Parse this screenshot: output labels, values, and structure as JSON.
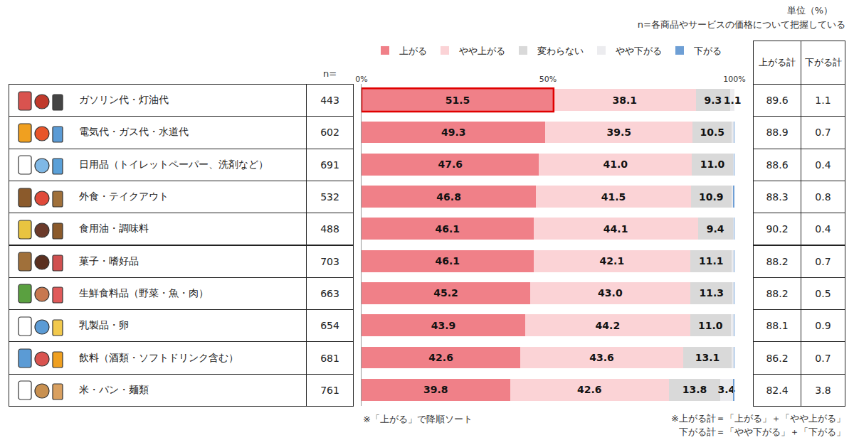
{
  "chart_data": {
    "type": "bar",
    "orientation": "horizontal",
    "stacked": true,
    "data_labels": true,
    "grid": false,
    "legend": "top",
    "unit_note": "単位（%）",
    "n_note": "n=各商品やサービスの価格について把握している",
    "n_label": "n=",
    "categories": [
      "ガソリン代・灯油代",
      "電気代・ガス代・水道代",
      "日用品（トイレットペーパー、洗剤など）",
      "外食・テイクアウト",
      "食用油・調味料",
      "菓子・嗜好品",
      "生鮮食料品（野菜・魚・肉）",
      "乳製品・卵",
      "飲料（酒類・ソフトドリンク含む）",
      "米・パン・麺類"
    ],
    "n": [
      443,
      602,
      691,
      532,
      488,
      703,
      663,
      654,
      681,
      761
    ],
    "xlim": [
      0,
      100
    ],
    "xticks": [
      {
        "value": 0,
        "label": "0%"
      },
      {
        "value": 50,
        "label": "50%"
      },
      {
        "value": 100,
        "label": "100%"
      }
    ],
    "series": [
      {
        "name": "上がる",
        "color": "#F08088",
        "values": [
          51.5,
          49.3,
          47.6,
          46.8,
          46.1,
          46.1,
          45.2,
          43.9,
          42.6,
          39.8
        ],
        "value_labels": [
          "51.5",
          "49.3",
          "47.6",
          "46.8",
          "46.1",
          "46.1",
          "45.2",
          "43.9",
          "42.6",
          "39.8"
        ]
      },
      {
        "name": "やや上がる",
        "color": "#FBD3D6",
        "values": [
          38.1,
          39.5,
          41.0,
          41.5,
          44.1,
          42.1,
          43.0,
          44.2,
          43.6,
          42.6
        ],
        "value_labels": [
          "38.1",
          "39.5",
          "41.0",
          "41.5",
          "44.1",
          "42.1",
          "43.0",
          "44.2",
          "43.6",
          "42.6"
        ]
      },
      {
        "name": "変わらない",
        "color": "#D9D9D9",
        "values": [
          9.3,
          10.5,
          11.0,
          10.9,
          9.4,
          11.1,
          11.3,
          11.0,
          13.1,
          13.8
        ],
        "value_labels": [
          "9.3",
          "10.5",
          "11.0",
          "10.9",
          "9.4",
          "11.1",
          "11.3",
          "11.0",
          "13.1",
          "13.8"
        ]
      },
      {
        "name": "やや下がる",
        "color": "#ECECEF",
        "values": [
          1.1,
          0.5,
          0.2,
          0.5,
          0.3,
          0.5,
          0.4,
          0.7,
          0.5,
          3.4
        ],
        "value_labels": [
          "1.1",
          null,
          null,
          null,
          null,
          null,
          null,
          null,
          null,
          "3.4"
        ]
      },
      {
        "name": "下がる",
        "color": "#6E9FD5",
        "values": [
          0.0,
          0.2,
          0.2,
          0.3,
          0.1,
          0.2,
          0.1,
          0.2,
          0.2,
          0.4
        ],
        "value_labels": [
          null,
          null,
          null,
          null,
          null,
          null,
          null,
          null,
          null,
          null
        ]
      }
    ],
    "totals": {
      "headers": [
        "上がる計",
        "下がる計"
      ],
      "up": [
        89.6,
        88.9,
        88.6,
        88.3,
        90.2,
        88.2,
        88.2,
        88.1,
        86.2,
        82.4
      ],
      "down": [
        1.1,
        0.7,
        0.4,
        0.8,
        0.4,
        0.7,
        0.5,
        0.9,
        0.7,
        3.8
      ]
    },
    "notes": [
      "※「上がる」で降順ソート",
      "※上がる計＝「上がる」＋「やや上がる」",
      "下がる計＝「やや下がる」＋「下がる」"
    ]
  }
}
